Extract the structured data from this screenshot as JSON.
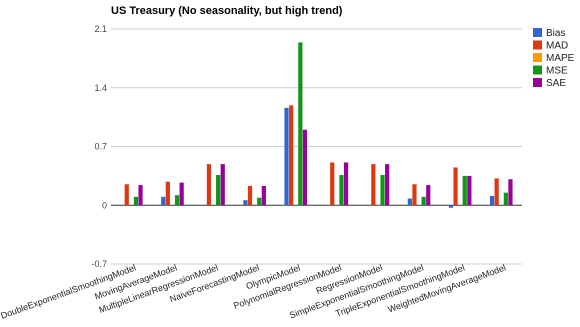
{
  "chart_data": {
    "type": "bar",
    "title": "US Treasury (No seasonality, but high trend)",
    "xlabel": "",
    "ylabel": "",
    "ylim": [
      -0.7,
      2.1
    ],
    "yticks": [
      "2.1",
      "1.4",
      "0.7",
      "0",
      "-0.7"
    ],
    "grid": true,
    "legend_position": "right",
    "categories": [
      "DoubleExponentialSmoothingModel",
      "MovingAverageModel",
      "MultipleLinearRegressionModel",
      "NaiveForecastingModel",
      "OlympicModel",
      "PolynomialRegressionModel",
      "RegressionModel",
      "SimpleExponentialSmoothingModel",
      "TripleExponentialSmoothingModel",
      "WeightedMovingAverageModel"
    ],
    "series": [
      {
        "name": "Bias",
        "color": "#3366cc",
        "values": [
          0.0,
          0.1,
          0.0,
          0.06,
          1.16,
          0.0,
          0.0,
          0.08,
          -0.03,
          0.11
        ]
      },
      {
        "name": "MAD",
        "color": "#dc3912",
        "values": [
          0.25,
          0.28,
          0.49,
          0.23,
          1.19,
          0.51,
          0.49,
          0.25,
          0.45,
          0.32
        ]
      },
      {
        "name": "MAPE",
        "color": "#ff9900",
        "values": [
          0.0,
          0.0,
          0.0,
          0.0,
          0.0,
          0.0,
          0.0,
          0.0,
          0.0,
          0.0
        ]
      },
      {
        "name": "MSE",
        "color": "#109618",
        "values": [
          0.1,
          0.12,
          0.36,
          0.09,
          1.94,
          0.36,
          0.36,
          0.1,
          0.35,
          0.15
        ]
      },
      {
        "name": "SAE",
        "color": "#990099",
        "values": [
          0.24,
          0.27,
          0.49,
          0.23,
          0.9,
          0.51,
          0.49,
          0.24,
          0.35,
          0.31
        ]
      }
    ]
  }
}
